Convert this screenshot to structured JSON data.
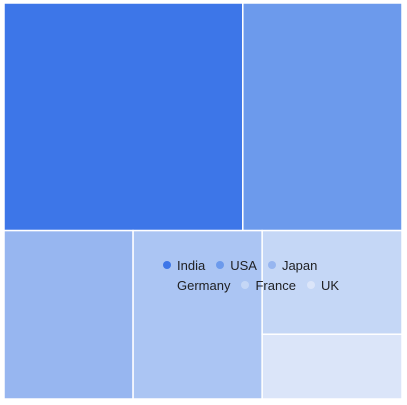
{
  "chart_data": {
    "type": "treemap",
    "title": "",
    "categories": [
      "India",
      "USA",
      "Japan",
      "Germany",
      "France",
      "UK"
    ],
    "values": [
      30,
      20,
      12,
      12,
      8,
      5
    ],
    "colors": [
      "#3d76e8",
      "#6c9aec",
      "#97b6f0",
      "#abc5f3",
      "#c5d7f6",
      "#dbe5f9"
    ],
    "legend_position": "center"
  }
}
